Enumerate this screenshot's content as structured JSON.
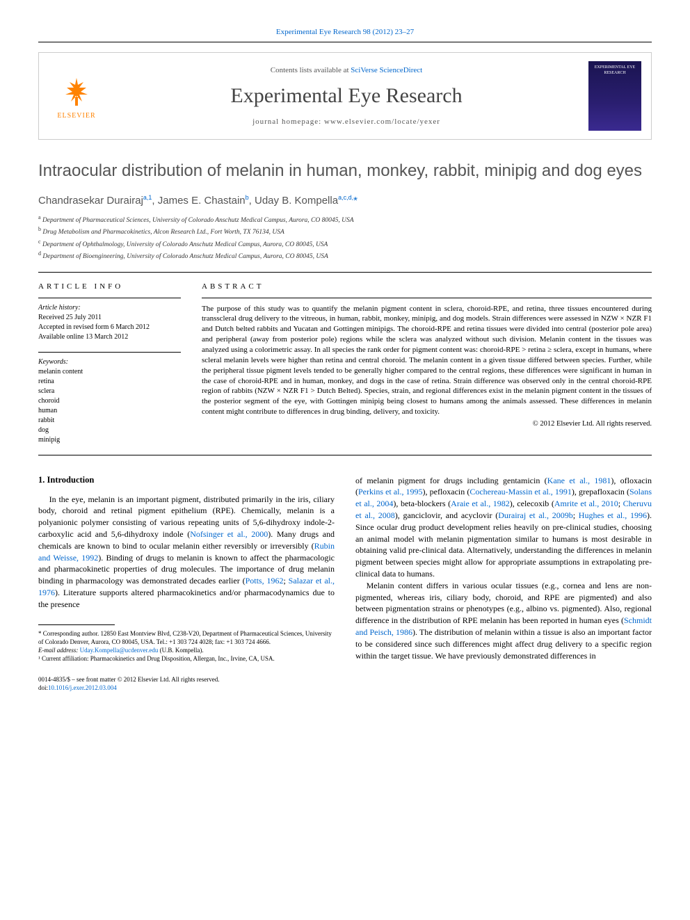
{
  "running_header": "Experimental Eye Research 98 (2012) 23–27",
  "masthead": {
    "contents_prefix": "Contents lists available at ",
    "contents_link": "SciVerse ScienceDirect",
    "journal": "Experimental Eye Research",
    "homepage_prefix": "journal homepage: ",
    "homepage_url": "www.elsevier.com/locate/yexer",
    "publisher": "ELSEVIER",
    "cover_text": "EXPERIMENTAL EYE RESEARCH"
  },
  "title": "Intraocular distribution of melanin in human, monkey, rabbit, minipig and dog eyes",
  "authors_html": "Chandrasekar Durairaj<sup>a,1</sup>, James E. Chastain<sup>b</sup>, Uday B. Kompella<sup>a,c,d,</sup><span class='star'>*</span>",
  "affiliations": [
    {
      "sup": "a",
      "text": "Department of Pharmaceutical Sciences, University of Colorado Anschutz Medical Campus, Aurora, CO 80045, USA"
    },
    {
      "sup": "b",
      "text": "Drug Metabolism and Pharmacokinetics, Alcon Research Ltd., Fort Worth, TX 76134, USA"
    },
    {
      "sup": "c",
      "text": "Department of Ophthalmology, University of Colorado Anschutz Medical Campus, Aurora, CO 80045, USA"
    },
    {
      "sup": "d",
      "text": "Department of Bioengineering, University of Colorado Anschutz Medical Campus, Aurora, CO 80045, USA"
    }
  ],
  "article_info": {
    "heading": "ARTICLE INFO",
    "history_label": "Article history:",
    "received": "Received 25 July 2011",
    "accepted": "Accepted in revised form 6 March 2012",
    "online": "Available online 13 March 2012",
    "keywords_label": "Keywords:",
    "keywords": [
      "melanin content",
      "retina",
      "sclera",
      "choroid",
      "human",
      "rabbit",
      "dog",
      "minipig"
    ]
  },
  "abstract": {
    "heading": "ABSTRACT",
    "text": "The purpose of this study was to quantify the melanin pigment content in sclera, choroid-RPE, and retina, three tissues encountered during transscleral drug delivery to the vitreous, in human, rabbit, monkey, minipig, and dog models. Strain differences were assessed in NZW × NZR F1 and Dutch belted rabbits and Yucatan and Gottingen minipigs. The choroid-RPE and retina tissues were divided into central (posterior pole area) and peripheral (away from posterior pole) regions while the sclera was analyzed without such division. Melanin content in the tissues was analyzed using a colorimetric assay. In all species the rank order for pigment content was: choroid-RPE > retina ≥ sclera, except in humans, where scleral melanin levels were higher than retina and central choroid. The melanin content in a given tissue differed between species. Further, while the peripheral tissue pigment levels tended to be generally higher compared to the central regions, these differences were significant in human in the case of choroid-RPE and in human, monkey, and dogs in the case of retina. Strain difference was observed only in the central choroid-RPE region of rabbits (NZW × NZR F1 > Dutch Belted). Species, strain, and regional differences exist in the melanin pigment content in the tissues of the posterior segment of the eye, with Gottingen minipig being closest to humans among the animals assessed. These differences in melanin content might contribute to differences in drug binding, delivery, and toxicity.",
    "copyright": "© 2012 Elsevier Ltd. All rights reserved."
  },
  "body": {
    "section1_heading": "1. Introduction",
    "col1_p1_a": "In the eye, melanin is an important pigment, distributed primarily in the iris, ciliary body, choroid and retinal pigment epithelium (RPE). Chemically, melanin is a polyanionic polymer consisting of various repeating units of 5,6-dihydroxy indole-2-carboxylic acid and 5,6-dihydroxy indole (",
    "col1_p1_cite1": "Nofsinger et al., 2000",
    "col1_p1_b": "). Many drugs and chemicals are known to bind to ocular melanin either reversibly or irreversibly (",
    "col1_p1_cite2": "Rubin and Weisse, 1992",
    "col1_p1_c": "). Binding of drugs to melanin is known to affect the pharmacologic and pharmacokinetic properties of drug molecules. The importance of drug melanin binding in pharmacology was demonstrated decades earlier (",
    "col1_p1_cite3": "Potts, 1962",
    "col1_p1_d": "; ",
    "col1_p1_cite4": "Salazar et al., 1976",
    "col1_p1_e": "). Literature supports altered pharmacokinetics and/or pharmacodynamics due to the presence",
    "col2_p1_a": "of melanin pigment for drugs including gentamicin (",
    "col2_cite1": "Kane et al., 1981",
    "col2_p1_b": "), ofloxacin (",
    "col2_cite2": "Perkins et al., 1995",
    "col2_p1_c": "), pefloxacin (",
    "col2_cite3": "Cochereau-Massin et al., 1991",
    "col2_p1_d": "), grepafloxacin (",
    "col2_cite4": "Solans et al., 2004",
    "col2_p1_e": "), beta-blockers (",
    "col2_cite5": "Araie et al., 1982",
    "col2_p1_f": "), celecoxib (",
    "col2_cite6": "Amrite et al., 2010",
    "col2_p1_g": "; ",
    "col2_cite7": "Cheruvu et al., 2008",
    "col2_p1_h": "), ganciclovir, and acyclovir (",
    "col2_cite8": "Durairaj et al., 2009b",
    "col2_p1_i": "; ",
    "col2_cite9": "Hughes et al., 1996",
    "col2_p1_j": "). Since ocular drug product development relies heavily on pre-clinical studies, choosing an animal model with melanin pigmentation similar to humans is most desirable in obtaining valid pre-clinical data. Alternatively, understanding the differences in melanin pigment between species might allow for appropriate assumptions in extrapolating pre-clinical data to humans.",
    "col2_p2_a": "Melanin content differs in various ocular tissues (e.g., cornea and lens are non-pigmented, whereas iris, ciliary body, choroid, and RPE are pigmented) and also between pigmentation strains or phenotypes (e.g., albino vs. pigmented). Also, regional difference in the distribution of RPE melanin has been reported in human eyes (",
    "col2_p2_cite1": "Schmidt and Peisch, 1986",
    "col2_p2_b": "). The distribution of melanin within a tissue is also an important factor to be considered since such differences might affect drug delivery to a specific region within the target tissue. We have previously demonstrated differences in"
  },
  "footnotes": {
    "corresponding": "* Corresponding author. 12850 East Montview Blvd, C238-V20, Department of Pharmaceutical Sciences, University of Colorado Denver, Aurora, CO 80045, USA. Tel.: +1 303 724 4028; fax: +1 303 724 4666.",
    "email_label": "E-mail address: ",
    "email": "Uday.Kompella@ucdenver.edu",
    "email_tail": " (U.B. Kompella).",
    "note1": "¹ Current affiliation: Pharmacokinetics and Drug Disposition, Allergan, Inc., Irvine, CA, USA.",
    "front_matter": "0014-4835/$ – see front matter © 2012 Elsevier Ltd. All rights reserved.",
    "doi_label": "doi:",
    "doi": "10.1016/j.exer.2012.03.004"
  }
}
